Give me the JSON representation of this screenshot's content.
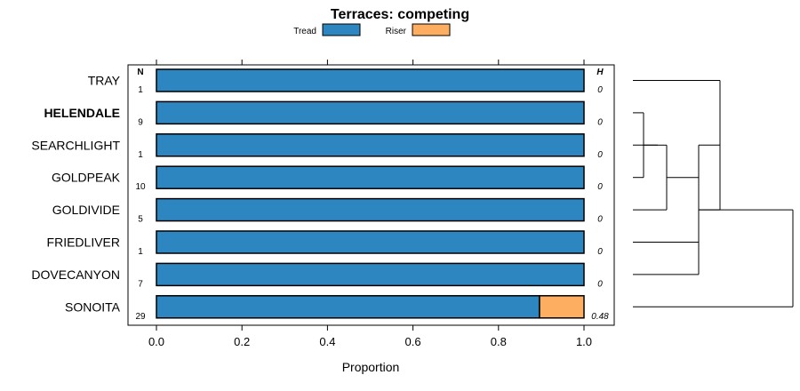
{
  "chart_data": {
    "type": "bar",
    "orientation": "horizontal",
    "stacked": true,
    "title": "Terraces: competing",
    "xlabel": "Proportion",
    "xlim": [
      -0.07,
      1.07
    ],
    "xticks": [
      "0.0",
      "0.2",
      "0.4",
      "0.6",
      "0.8",
      "1.0"
    ],
    "xtick_values": [
      0,
      0.2,
      0.4,
      0.6,
      0.8,
      1.0
    ],
    "legend_position": "top",
    "series": [
      {
        "name": "Tread",
        "color": "#2e86c1"
      },
      {
        "name": "Riser",
        "color": "#fdae61"
      }
    ],
    "n_header": "N",
    "h_header": "H",
    "categories": [
      "TRAY",
      "HELENDALE",
      "SEARCHLIGHT",
      "GOLDPEAK",
      "GOLDIVIDE",
      "FRIEDLIVER",
      "DOVECANYON",
      "SONOITA"
    ],
    "bold_categories": [
      "HELENDALE"
    ],
    "rows": [
      {
        "label": "TRAY",
        "n": "1",
        "h": "0",
        "tread": 1.0,
        "riser": 0.0
      },
      {
        "label": "HELENDALE",
        "n": "9",
        "h": "0",
        "tread": 1.0,
        "riser": 0.0
      },
      {
        "label": "SEARCHLIGHT",
        "n": "1",
        "h": "0",
        "tread": 1.0,
        "riser": 0.0
      },
      {
        "label": "GOLDPEAK",
        "n": "10",
        "h": "0",
        "tread": 1.0,
        "riser": 0.0
      },
      {
        "label": "GOLDIVIDE",
        "n": "5",
        "h": "0",
        "tread": 1.0,
        "riser": 0.0
      },
      {
        "label": "FRIEDLIVER",
        "n": "1",
        "h": "0",
        "tread": 1.0,
        "riser": 0.0
      },
      {
        "label": "DOVECANYON",
        "n": "7",
        "h": "0",
        "tread": 1.0,
        "riser": 0.0
      },
      {
        "label": "SONOITA",
        "n": "29",
        "h": "0.48",
        "tread": 0.896,
        "riser": 0.104
      }
    ],
    "dendrogram": "hierarchical clustering of the eight sites shown to the right of the panel"
  }
}
